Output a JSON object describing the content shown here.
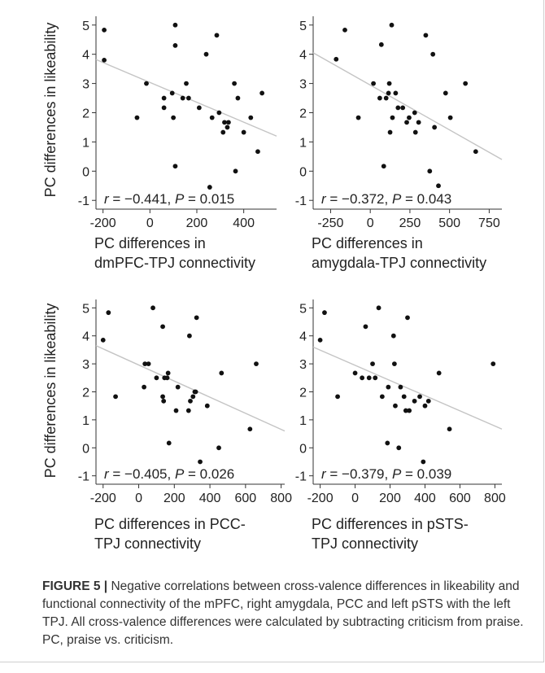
{
  "chart_data": [
    {
      "type": "scatter",
      "annotation": {
        "r_label": "r",
        "r_value": "= −0.441,",
        "p_label": "P",
        "p_value": "= 0.015"
      },
      "ylabel": "PC differences in likeability",
      "xlabel_lines": [
        "PC differences in",
        "dmPFC-TPJ connectivity"
      ],
      "xlim": [
        -230,
        540
      ],
      "ylim": [
        -1.3,
        5.3
      ],
      "xticks": [
        -200,
        0,
        200,
        400
      ],
      "yticks": [
        -1,
        0,
        1,
        2,
        3,
        4,
        5
      ],
      "trend": [
        [
          -230,
          3.82
        ],
        [
          540,
          1.2
        ]
      ],
      "points": [
        [
          -195,
          4.83
        ],
        [
          -195,
          3.8
        ],
        [
          -55,
          1.83
        ],
        [
          -15,
          3.0
        ],
        [
          60,
          2.17
        ],
        [
          60,
          2.5
        ],
        [
          95,
          2.67
        ],
        [
          100,
          1.83
        ],
        [
          108,
          5.0
        ],
        [
          108,
          4.3
        ],
        [
          108,
          0.17
        ],
        [
          140,
          2.5
        ],
        [
          155,
          3.0
        ],
        [
          165,
          2.5
        ],
        [
          210,
          2.17
        ],
        [
          240,
          4.0
        ],
        [
          255,
          -0.55
        ],
        [
          265,
          1.83
        ],
        [
          285,
          4.65
        ],
        [
          295,
          2.0
        ],
        [
          312,
          1.33
        ],
        [
          318,
          1.67
        ],
        [
          330,
          1.5
        ],
        [
          335,
          1.67
        ],
        [
          360,
          3.0
        ],
        [
          365,
          0.0
        ],
        [
          375,
          2.5
        ],
        [
          400,
          1.33
        ],
        [
          430,
          1.83
        ],
        [
          460,
          0.67
        ],
        [
          478,
          2.67
        ]
      ]
    },
    {
      "type": "scatter",
      "annotation": {
        "r_label": "r",
        "r_value": "= −0.372,",
        "p_label": "P",
        "p_value": "= 0.043"
      },
      "ylabel": "",
      "xlabel_lines": [
        "PC differences in",
        "amygdala-TPJ connectivity"
      ],
      "xlim": [
        -360,
        830
      ],
      "ylim": [
        -1.3,
        5.3
      ],
      "xticks": [
        -250,
        0,
        250,
        500,
        750
      ],
      "yticks": [
        -1,
        0,
        1,
        2,
        3,
        4,
        5
      ],
      "trend": [
        [
          -360,
          4.05
        ],
        [
          830,
          0.4
        ]
      ],
      "points": [
        [
          -215,
          3.83
        ],
        [
          -160,
          4.83
        ],
        [
          -75,
          1.83
        ],
        [
          20,
          3.0
        ],
        [
          60,
          2.5
        ],
        [
          70,
          4.33
        ],
        [
          85,
          0.17
        ],
        [
          100,
          2.5
        ],
        [
          115,
          2.67
        ],
        [
          120,
          3.0
        ],
        [
          125,
          1.33
        ],
        [
          135,
          5.0
        ],
        [
          140,
          1.83
        ],
        [
          160,
          2.67
        ],
        [
          175,
          2.17
        ],
        [
          205,
          2.17
        ],
        [
          230,
          1.67
        ],
        [
          245,
          1.83
        ],
        [
          280,
          2.0
        ],
        [
          285,
          1.33
        ],
        [
          305,
          1.67
        ],
        [
          350,
          4.65
        ],
        [
          375,
          0.0
        ],
        [
          395,
          4.0
        ],
        [
          405,
          1.5
        ],
        [
          430,
          -0.5
        ],
        [
          475,
          2.67
        ],
        [
          505,
          1.83
        ],
        [
          600,
          3.0
        ],
        [
          665,
          0.67
        ]
      ]
    },
    {
      "type": "scatter",
      "annotation": {
        "r_label": "r",
        "r_value": "= −0.405,",
        "p_label": "P",
        "p_value": "= 0.026"
      },
      "ylabel": "PC differences in likeability",
      "xlabel_lines": [
        "PC differences in PCC-",
        "TPJ connectivity"
      ],
      "xlim": [
        -240,
        820
      ],
      "ylim": [
        -1.3,
        5.3
      ],
      "xticks": [
        -200,
        0,
        200,
        400,
        600,
        800
      ],
      "yticks": [
        -1,
        0,
        1,
        2,
        3,
        4,
        5
      ],
      "trend": [
        [
          -240,
          3.65
        ],
        [
          820,
          0.6
        ]
      ],
      "points": [
        [
          -200,
          3.85
        ],
        [
          -170,
          4.83
        ],
        [
          -130,
          1.83
        ],
        [
          30,
          2.17
        ],
        [
          35,
          3.0
        ],
        [
          55,
          3.0
        ],
        [
          80,
          5.0
        ],
        [
          100,
          2.5
        ],
        [
          135,
          4.33
        ],
        [
          135,
          1.83
        ],
        [
          140,
          1.67
        ],
        [
          145,
          2.5
        ],
        [
          160,
          2.5
        ],
        [
          165,
          2.67
        ],
        [
          170,
          0.17
        ],
        [
          210,
          1.33
        ],
        [
          220,
          2.17
        ],
        [
          280,
          1.33
        ],
        [
          285,
          4.0
        ],
        [
          290,
          1.67
        ],
        [
          305,
          1.83
        ],
        [
          315,
          2.0
        ],
        [
          320,
          2.0
        ],
        [
          325,
          4.65
        ],
        [
          345,
          -0.5
        ],
        [
          385,
          1.5
        ],
        [
          450,
          0.0
        ],
        [
          465,
          2.67
        ],
        [
          625,
          0.67
        ],
        [
          660,
          3.0
        ]
      ]
    },
    {
      "type": "scatter",
      "annotation": {
        "r_label": "r",
        "r_value": "= −0.379,",
        "p_label": "P",
        "p_value": "= 0.039"
      },
      "ylabel": "",
      "xlabel_lines": [
        "PC differences in pSTS-",
        "TPJ connectivity"
      ],
      "xlim": [
        -240,
        840
      ],
      "ylim": [
        -1.3,
        5.3
      ],
      "xticks": [
        -200,
        0,
        200,
        400,
        600,
        800
      ],
      "yticks": [
        -1,
        0,
        1,
        2,
        3,
        4,
        5
      ],
      "trend": [
        [
          -240,
          3.6
        ],
        [
          840,
          0.67
        ]
      ],
      "points": [
        [
          -200,
          3.85
        ],
        [
          -175,
          4.83
        ],
        [
          -100,
          1.83
        ],
        [
          0,
          2.67
        ],
        [
          40,
          2.5
        ],
        [
          60,
          4.33
        ],
        [
          80,
          2.5
        ],
        [
          100,
          3.0
        ],
        [
          115,
          2.5
        ],
        [
          135,
          5.0
        ],
        [
          155,
          1.83
        ],
        [
          185,
          0.17
        ],
        [
          190,
          2.17
        ],
        [
          220,
          4.0
        ],
        [
          225,
          3.0
        ],
        [
          230,
          1.5
        ],
        [
          250,
          0.0
        ],
        [
          260,
          2.17
        ],
        [
          280,
          1.83
        ],
        [
          290,
          1.33
        ],
        [
          300,
          4.65
        ],
        [
          310,
          1.33
        ],
        [
          340,
          1.67
        ],
        [
          370,
          1.83
        ],
        [
          390,
          -0.5
        ],
        [
          400,
          1.5
        ],
        [
          420,
          1.67
        ],
        [
          480,
          2.67
        ],
        [
          540,
          0.67
        ],
        [
          790,
          3.0
        ]
      ]
    }
  ],
  "caption": {
    "label": "FIGURE 5 |",
    "text": " Negative correlations between cross-valence differences in likeability and functional connectivity of the mPFC, right amygdala, PCC and left pSTS with the left TPJ. All cross-valence differences were calculated by subtracting criticism from praise. PC, praise vs. criticism."
  }
}
